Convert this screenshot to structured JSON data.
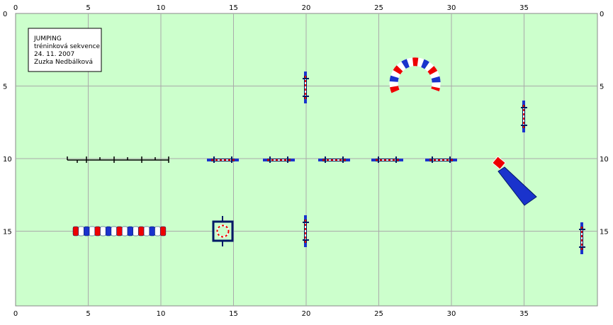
{
  "legend": {
    "lines": [
      "JUMPING",
      "tréninková sekvence",
      "24. 11. 2007",
      "Zuzka Nedbálková"
    ]
  },
  "axes": {
    "xticks": [
      0,
      5,
      10,
      15,
      20,
      25,
      30,
      35
    ],
    "yticks": [
      0,
      5,
      10,
      15
    ]
  }
}
